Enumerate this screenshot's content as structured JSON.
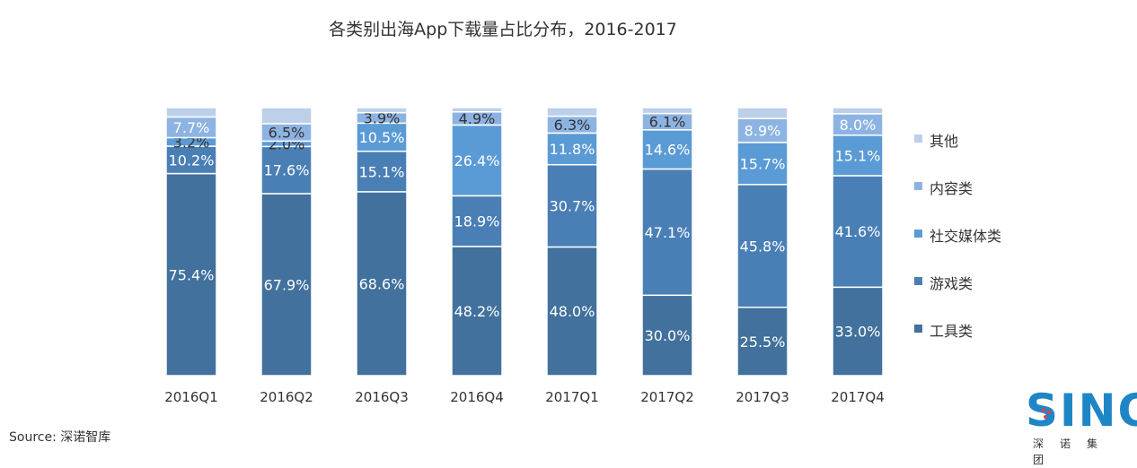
{
  "chart_data": {
    "type": "bar",
    "stacked": true,
    "normalized": true,
    "title": "各类别出海App下载量占比分布，2016-2017",
    "categories": [
      "2016Q1",
      "2016Q2",
      "2016Q3",
      "2016Q4",
      "2017Q1",
      "2017Q2",
      "2017Q3",
      "2017Q4"
    ],
    "series": [
      {
        "name": "工具类",
        "color": "#41719c",
        "values": [
          75.4,
          67.9,
          68.6,
          48.2,
          48.0,
          30.0,
          25.5,
          33.0
        ],
        "labels": [
          "75.4%",
          "67.9%",
          "68.6%",
          "48.2%",
          "48.0%",
          "30.0%",
          "25.5%",
          "33.0%"
        ]
      },
      {
        "name": "游戏类",
        "color": "#4a7fb6",
        "values": [
          10.2,
          17.6,
          15.1,
          18.9,
          30.7,
          47.1,
          45.8,
          41.6
        ],
        "labels": [
          "10.2%",
          "17.6%",
          "15.1%",
          "18.9%",
          "30.7%",
          "47.1%",
          "45.8%",
          "41.6%"
        ]
      },
      {
        "name": "社交媒体类",
        "color": "#5b9bd5",
        "values": [
          3.2,
          2.0,
          10.5,
          26.4,
          11.8,
          14.6,
          15.7,
          15.1
        ],
        "labels": [
          "3.2%",
          "2.0%",
          "10.5%",
          "26.4%",
          "11.8%",
          "14.6%",
          "15.7%",
          "15.1%"
        ]
      },
      {
        "name": "内容类",
        "color": "#8db3e2",
        "values": [
          7.7,
          6.5,
          3.9,
          4.9,
          6.3,
          6.1,
          8.9,
          8.0
        ],
        "labels": [
          "7.7%",
          "6.5%",
          "3.9%",
          "4.9%",
          "6.3%",
          "6.1%",
          "8.9%",
          "8.0%"
        ]
      },
      {
        "name": "其他",
        "color": "#bdd0ea",
        "values": [
          3.5,
          6.0,
          1.9,
          1.6,
          3.2,
          2.2,
          4.1,
          2.3
        ],
        "labels": [
          "",
          "",
          "",
          "",
          "",
          "",
          "",
          ""
        ]
      }
    ],
    "legend_order": [
      "其他",
      "内容类",
      "社交媒体类",
      "游戏类",
      "工具类"
    ],
    "legend_position": "right",
    "grid": false,
    "ylim": [
      0,
      100
    ]
  },
  "source": "Source: 深诺智库",
  "logo": {
    "text": "SINO",
    "subtitle": "深诺集团",
    "color": "#1f86c6"
  }
}
